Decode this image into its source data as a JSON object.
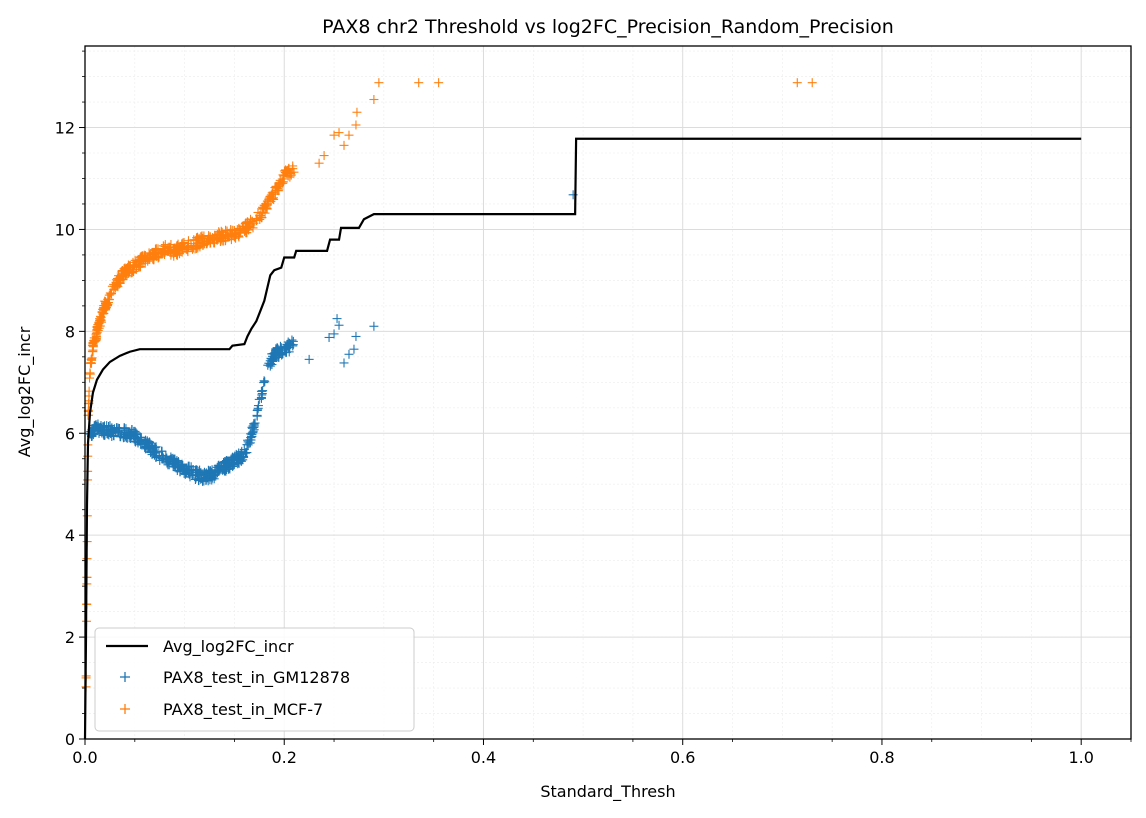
{
  "chart_data": {
    "type": "line",
    "title": "PAX8 chr2 Threshold vs log2FC_Precision_Random_Precision",
    "xlabel": "Standard_Thresh",
    "ylabel": "Avg_log2FC_incr",
    "xlim": [
      0.0,
      1.05
    ],
    "ylim": [
      0,
      13.6
    ],
    "xticks": [
      0.0,
      0.2,
      0.4,
      0.6,
      0.8,
      1.0
    ],
    "xtick_labels": [
      "0.0",
      "0.2",
      "0.4",
      "0.6",
      "0.8",
      "1.0"
    ],
    "yticks": [
      0,
      2,
      4,
      6,
      8,
      10,
      12
    ],
    "ytick_labels": [
      "0",
      "2",
      "4",
      "6",
      "8",
      "10",
      "12"
    ],
    "grid": true,
    "minor_grid": true,
    "legend_position": "lower-left",
    "series": [
      {
        "name": "Avg_log2FC_incr",
        "kind": "line",
        "color": "#000000",
        "points": [
          [
            0.0,
            0.0
          ],
          [
            0.001,
            2.0
          ],
          [
            0.002,
            4.6
          ],
          [
            0.003,
            5.8
          ],
          [
            0.005,
            6.4
          ],
          [
            0.008,
            6.8
          ],
          [
            0.012,
            7.05
          ],
          [
            0.018,
            7.25
          ],
          [
            0.025,
            7.4
          ],
          [
            0.035,
            7.52
          ],
          [
            0.045,
            7.6
          ],
          [
            0.055,
            7.65
          ],
          [
            0.145,
            7.65
          ],
          [
            0.148,
            7.72
          ],
          [
            0.16,
            7.75
          ],
          [
            0.163,
            7.9
          ],
          [
            0.167,
            8.05
          ],
          [
            0.172,
            8.2
          ],
          [
            0.177,
            8.45
          ],
          [
            0.18,
            8.6
          ],
          [
            0.183,
            8.85
          ],
          [
            0.186,
            9.1
          ],
          [
            0.19,
            9.2
          ],
          [
            0.197,
            9.25
          ],
          [
            0.2,
            9.45
          ],
          [
            0.21,
            9.45
          ],
          [
            0.212,
            9.58
          ],
          [
            0.243,
            9.58
          ],
          [
            0.246,
            9.8
          ],
          [
            0.255,
            9.8
          ],
          [
            0.257,
            10.03
          ],
          [
            0.275,
            10.03
          ],
          [
            0.28,
            10.2
          ],
          [
            0.29,
            10.3
          ],
          [
            0.492,
            10.3
          ],
          [
            0.493,
            11.78
          ],
          [
            1.0,
            11.78
          ]
        ]
      },
      {
        "name": "PAX8_test_in_GM12878",
        "kind": "scatter",
        "marker": "+",
        "color": "#1f77b4",
        "dense_band": [
          [
            0.004,
            6.0
          ],
          [
            0.01,
            6.08
          ],
          [
            0.02,
            6.06
          ],
          [
            0.03,
            6.03
          ],
          [
            0.04,
            6.02
          ],
          [
            0.05,
            5.95
          ],
          [
            0.06,
            5.8
          ],
          [
            0.07,
            5.65
          ],
          [
            0.08,
            5.5
          ],
          [
            0.09,
            5.4
          ],
          [
            0.1,
            5.3
          ],
          [
            0.11,
            5.2
          ],
          [
            0.12,
            5.15
          ],
          [
            0.13,
            5.2
          ],
          [
            0.14,
            5.35
          ],
          [
            0.15,
            5.45
          ],
          [
            0.16,
            5.6
          ],
          [
            0.165,
            5.85
          ],
          [
            0.17,
            6.15
          ],
          [
            0.175,
            6.6
          ],
          [
            0.18,
            7.05
          ],
          [
            0.185,
            7.35
          ],
          [
            0.19,
            7.55
          ],
          [
            0.2,
            7.65
          ],
          [
            0.21,
            7.75
          ]
        ],
        "points": [
          [
            0.225,
            7.45
          ],
          [
            0.245,
            7.88
          ],
          [
            0.25,
            7.95
          ],
          [
            0.253,
            8.25
          ],
          [
            0.255,
            8.12
          ],
          [
            0.26,
            7.38
          ],
          [
            0.265,
            7.55
          ],
          [
            0.27,
            7.65
          ],
          [
            0.272,
            7.9
          ],
          [
            0.29,
            8.1
          ],
          [
            0.49,
            10.68
          ]
        ]
      },
      {
        "name": "PAX8_test_in_MCF-7",
        "kind": "scatter",
        "marker": "+",
        "color": "#ff7f0e",
        "dense_band": [
          [
            0.001,
            1.0
          ],
          [
            0.002,
            3.5
          ],
          [
            0.003,
            6.2
          ],
          [
            0.005,
            7.2
          ],
          [
            0.008,
            7.7
          ],
          [
            0.012,
            8.0
          ],
          [
            0.02,
            8.5
          ],
          [
            0.03,
            8.9
          ],
          [
            0.04,
            9.15
          ],
          [
            0.05,
            9.3
          ],
          [
            0.06,
            9.42
          ],
          [
            0.07,
            9.5
          ],
          [
            0.08,
            9.62
          ],
          [
            0.09,
            9.58
          ],
          [
            0.1,
            9.65
          ],
          [
            0.11,
            9.72
          ],
          [
            0.12,
            9.8
          ],
          [
            0.14,
            9.88
          ],
          [
            0.15,
            9.92
          ],
          [
            0.16,
            10.0
          ],
          [
            0.17,
            10.15
          ],
          [
            0.18,
            10.4
          ],
          [
            0.19,
            10.7
          ],
          [
            0.2,
            11.05
          ],
          [
            0.21,
            11.2
          ]
        ],
        "points": [
          [
            0.235,
            11.3
          ],
          [
            0.24,
            11.45
          ],
          [
            0.25,
            11.85
          ],
          [
            0.255,
            11.9
          ],
          [
            0.26,
            11.65
          ],
          [
            0.265,
            11.85
          ],
          [
            0.272,
            12.05
          ],
          [
            0.273,
            12.3
          ],
          [
            0.29,
            12.55
          ],
          [
            0.295,
            12.88
          ],
          [
            0.335,
            12.88
          ],
          [
            0.355,
            12.88
          ],
          [
            0.715,
            12.88
          ],
          [
            0.73,
            12.88
          ]
        ]
      }
    ]
  }
}
